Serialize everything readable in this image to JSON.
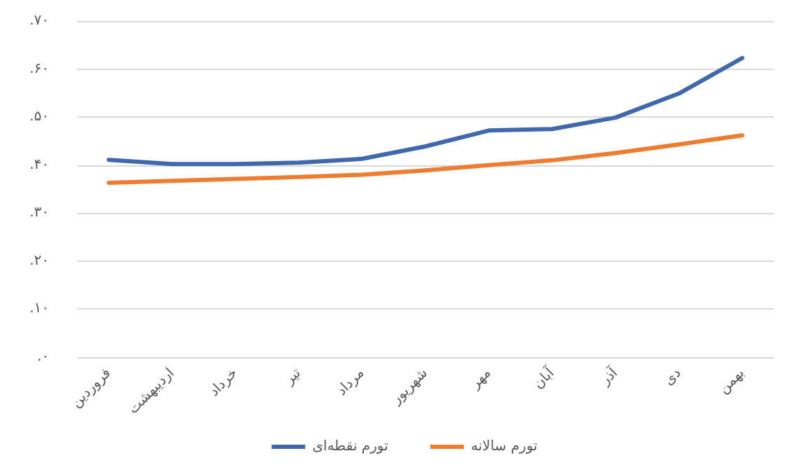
{
  "chart_data": {
    "type": "line",
    "categories": [
      "فروردین",
      "اردیبهشت",
      "خرداد",
      "تیر",
      "مرداد",
      "شهریور",
      "مهر",
      "آبان",
      "آذر",
      "دی",
      "بهمن"
    ],
    "series": [
      {
        "name": "تورم نقطه‌ای",
        "color": "#4068ac",
        "values": [
          0.411,
          0.402,
          0.402,
          0.405,
          0.413,
          0.439,
          0.472,
          0.475,
          0.499,
          0.549,
          0.623
        ]
      },
      {
        "name": "تورم سالانه",
        "color": "#ed7d31",
        "values": [
          0.363,
          0.367,
          0.371,
          0.375,
          0.38,
          0.389,
          0.4,
          0.41,
          0.425,
          0.443,
          0.462
        ]
      }
    ],
    "ylim": [
      0,
      0.7
    ],
    "yticks": [
      {
        "value": 0,
        "label": ".۰"
      },
      {
        "value": 0.1,
        "label": ".۱۰"
      },
      {
        "value": 0.2,
        "label": ".۲۰"
      },
      {
        "value": 0.3,
        "label": ".۳۰"
      },
      {
        "value": 0.4,
        "label": ".۴۰"
      },
      {
        "value": 0.5,
        "label": ".۵۰"
      },
      {
        "value": 0.6,
        "label": ".۶۰"
      },
      {
        "value": 0.7,
        "label": ".۷۰"
      }
    ],
    "grid": "y",
    "legend": "bottom",
    "marker": "none",
    "line_style": "solid"
  }
}
